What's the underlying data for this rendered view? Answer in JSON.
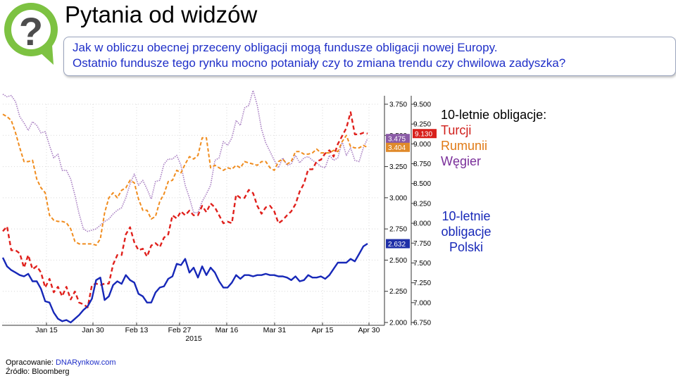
{
  "header": {
    "title": "Pytania od widzów",
    "question_line1": "Jak w obliczu obecnej przeceny obligacji mogą fundusze obligacji nowej Europy.",
    "question_line2": "Ostatnio fundusze  tego rynku mocno potaniały czy to zmiana trendu czy chwilowa zadyszka?"
  },
  "legend": {
    "group1_title": "10-letnie obligacje:",
    "turkey": "Turcji",
    "romania": "Rumunii",
    "hungary": "Węgier",
    "poland_line1": "10-letnie",
    "poland_line2": "obligacje",
    "poland_line3": "Polski"
  },
  "footer": {
    "prepared_label": "Opracowanie: ",
    "prepared_source": "DNARynkow.com",
    "source": "Źródło: Bloomberg"
  },
  "colors": {
    "turkey": "#e0201c",
    "romania": "#f08c1e",
    "hungary": "#a77dc1",
    "poland": "#1728b8",
    "legend_title": "#000000"
  },
  "chart_data": {
    "type": "line",
    "x_labels": [
      "Jan 15",
      "Jan 30",
      "Feb 13",
      "Feb 27",
      "Mar 16",
      "Mar 31",
      "Apr 15",
      "Apr 30"
    ],
    "x_sublabel": "2015",
    "axes": {
      "inner_right": {
        "ticks": [
          "3.750",
          "3.500",
          "3.250",
          "3.000",
          "2.750",
          "2.500",
          "2.250",
          "2.000"
        ],
        "min": 2.0,
        "max": 3.75
      },
      "outer_right": {
        "ticks": [
          "9.500",
          "9.250",
          "9.000",
          "8.750",
          "8.500",
          "8.250",
          "8.000",
          "7.750",
          "7.500",
          "7.250",
          "7.000",
          "6.750"
        ],
        "min": 6.75,
        "max": 9.5
      }
    },
    "grid": true,
    "series": [
      {
        "name": "Turcji",
        "axis": "outer_right",
        "style": "dashed",
        "last_label": "9.130",
        "values": [
          7.9,
          7.96,
          7.66,
          7.66,
          7.62,
          7.44,
          7.6,
          7.42,
          7.46,
          7.38,
          7.19,
          7.3,
          7.13,
          7.2,
          7.08,
          7.2,
          7.04,
          7.14,
          7.0,
          6.98,
          6.94,
          7.22,
          7.24,
          7.22,
          7.24,
          7.24,
          7.48,
          7.6,
          7.6,
          7.86,
          7.95,
          7.76,
          7.66,
          7.68,
          7.58,
          7.72,
          7.75,
          7.7,
          7.82,
          7.86,
          8.1,
          8.06,
          8.15,
          8.1,
          8.16,
          8.1,
          8.1,
          8.22,
          8.14,
          8.25,
          8.2,
          8.1,
          8.0,
          8.02,
          8.0,
          8.36,
          8.32,
          8.32,
          8.42,
          8.38,
          8.22,
          8.12,
          8.2,
          8.22,
          8.15,
          8.0,
          8.04,
          8.1,
          8.15,
          8.24,
          8.4,
          8.5,
          8.68,
          8.68,
          8.78,
          8.8,
          8.88,
          8.92,
          8.84,
          9.0,
          9.1,
          9.2,
          9.4,
          9.12,
          9.12,
          9.14,
          9.13
        ]
      },
      {
        "name": "Rumunii",
        "axis": "inner_right",
        "style": "dashed",
        "last_label": "3.404",
        "values": [
          3.67,
          3.65,
          3.62,
          3.52,
          3.4,
          3.29,
          3.29,
          3.3,
          3.15,
          3.08,
          3.04,
          2.86,
          2.82,
          2.81,
          2.81,
          2.8,
          2.75,
          2.65,
          2.63,
          2.63,
          2.63,
          2.63,
          2.62,
          2.67,
          2.88,
          3.0,
          3.04,
          3.0,
          3.06,
          3.08,
          3.14,
          3.12,
          2.99,
          2.9,
          2.9,
          2.83,
          2.85,
          2.97,
          3.03,
          3.13,
          3.14,
          3.22,
          3.2,
          3.27,
          3.33,
          3.31,
          3.34,
          3.48,
          3.48,
          3.24,
          3.26,
          3.24,
          3.22,
          3.24,
          3.23,
          3.26,
          3.24,
          3.29,
          3.28,
          3.27,
          3.26,
          3.29,
          3.29,
          3.24,
          3.22,
          3.29,
          3.31,
          3.27,
          3.29,
          3.37,
          3.37,
          3.35,
          3.35,
          3.36,
          3.39,
          3.36,
          3.36,
          3.36,
          3.38,
          3.37,
          3.45,
          3.5,
          3.41,
          3.4,
          3.4,
          3.42,
          3.404
        ]
      },
      {
        "name": "Węgier",
        "axis": "inner_right",
        "style": "dotted",
        "last_label": "3.475",
        "values": [
          3.83,
          3.81,
          3.82,
          3.77,
          3.65,
          3.6,
          3.54,
          3.61,
          3.58,
          3.52,
          3.53,
          3.42,
          3.32,
          3.35,
          3.22,
          3.22,
          3.15,
          3.02,
          2.87,
          2.75,
          2.73,
          2.74,
          2.75,
          2.78,
          2.81,
          2.83,
          2.87,
          2.9,
          2.92,
          3.0,
          3.11,
          3.19,
          3.1,
          3.14,
          3.07,
          2.99,
          3.13,
          3.14,
          3.27,
          3.31,
          3.31,
          3.34,
          3.26,
          3.1,
          3.0,
          2.88,
          2.88,
          2.97,
          3.03,
          3.1,
          3.3,
          3.32,
          3.45,
          3.42,
          3.48,
          3.62,
          3.58,
          3.72,
          3.74,
          3.86,
          3.74,
          3.55,
          3.44,
          3.37,
          3.3,
          3.24,
          3.32,
          3.26,
          3.27,
          3.34,
          3.28,
          3.32,
          3.33,
          3.3,
          3.28,
          3.25,
          3.24,
          3.34,
          3.3,
          3.32,
          3.45,
          3.34,
          3.4,
          3.3,
          3.29,
          3.4,
          3.475
        ]
      },
      {
        "name": "Polski",
        "axis": "inner_right",
        "style": "solid",
        "last_label": "2.632",
        "values": [
          2.52,
          2.45,
          2.42,
          2.4,
          2.38,
          2.37,
          2.39,
          2.33,
          2.33,
          2.27,
          2.17,
          2.16,
          2.08,
          2.03,
          2.01,
          2.02,
          2.0,
          2.03,
          2.06,
          2.1,
          2.13,
          2.19,
          2.34,
          2.36,
          2.18,
          2.21,
          2.3,
          2.33,
          2.31,
          2.38,
          2.34,
          2.32,
          2.23,
          2.21,
          2.16,
          2.16,
          2.24,
          2.28,
          2.29,
          2.35,
          2.37,
          2.47,
          2.46,
          2.51,
          2.4,
          2.44,
          2.36,
          2.45,
          2.38,
          2.44,
          2.4,
          2.33,
          2.28,
          2.28,
          2.32,
          2.38,
          2.35,
          2.38,
          2.38,
          2.37,
          2.38,
          2.38,
          2.39,
          2.38,
          2.38,
          2.37,
          2.37,
          2.36,
          2.34,
          2.37,
          2.33,
          2.34,
          2.38,
          2.36,
          2.36,
          2.37,
          2.35,
          2.38,
          2.43,
          2.48,
          2.48,
          2.48,
          2.51,
          2.49,
          2.55,
          2.61,
          2.632
        ]
      }
    ]
  }
}
